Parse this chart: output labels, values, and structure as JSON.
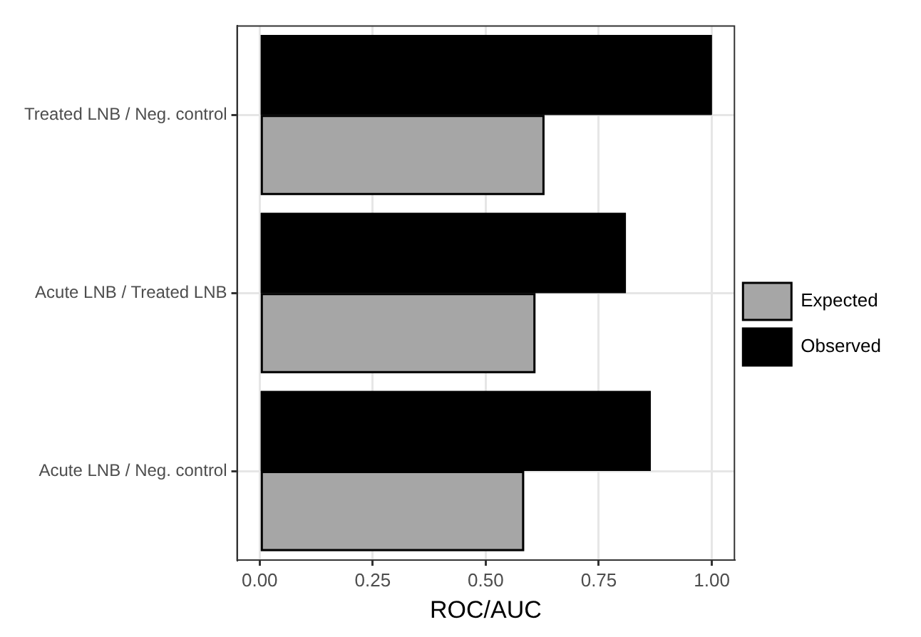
{
  "chart_data": {
    "type": "bar",
    "orientation": "horizontal",
    "xlabel": "ROC/AUC",
    "categories": [
      "Treated LNB / Neg. control",
      "Acute LNB / Treated LNB",
      "Acute LNB / Neg. control"
    ],
    "series": [
      {
        "name": "Expected",
        "color": "#a6a6a6",
        "values": [
          0.63,
          0.61,
          0.585
        ]
      },
      {
        "name": "Observed",
        "color": "#000000",
        "values": [
          1.0,
          0.81,
          0.865
        ]
      }
    ],
    "xlim": [
      -0.05,
      1.05
    ],
    "xticks": [
      {
        "value": 0,
        "label": "0.00"
      },
      {
        "value": 0.25,
        "label": "0.25"
      },
      {
        "value": 0.5,
        "label": "0.50"
      },
      {
        "value": 0.75,
        "label": "0.75"
      },
      {
        "value": 1,
        "label": "1.00"
      }
    ],
    "grid": true,
    "legend": "right"
  }
}
